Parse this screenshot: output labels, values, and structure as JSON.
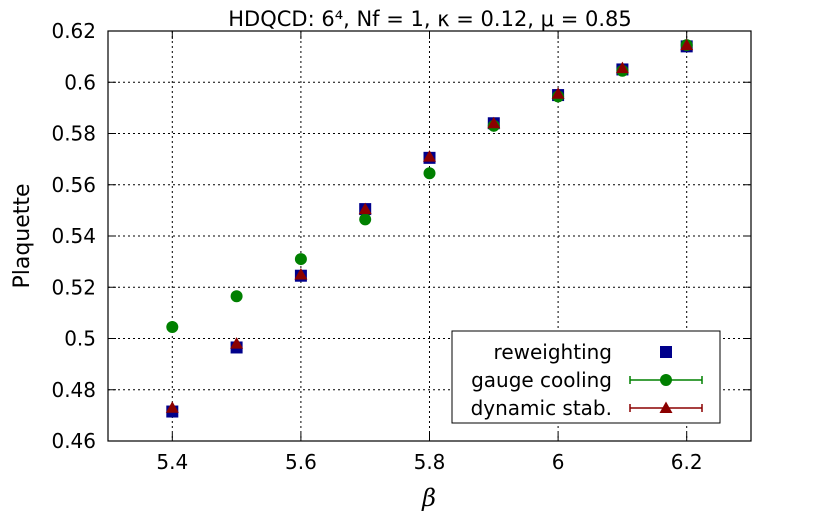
{
  "chart_data": {
    "type": "scatter",
    "title": "HDQCD: 6⁴, Nf = 1, κ = 0.12, μ = 0.85",
    "xlabel": "β",
    "ylabel": "Plaquette",
    "xlim": [
      5.3,
      6.3
    ],
    "ylim": [
      0.46,
      0.62
    ],
    "xticks": [
      5.4,
      5.6,
      5.8,
      6,
      6.2
    ],
    "yticks": [
      0.46,
      0.48,
      0.5,
      0.52,
      0.54,
      0.56,
      0.58,
      0.6,
      0.62
    ],
    "xtick_labels": [
      "5.4",
      "5.6",
      "5.8",
      "6",
      "6.2"
    ],
    "ytick_labels": [
      "0.46",
      "0.48",
      "0.5",
      "0.52",
      "0.54",
      "0.56",
      "0.58",
      "0.6",
      "0.62"
    ],
    "grid": true,
    "legend_position": "bottom-right",
    "series": [
      {
        "name": "reweighting",
        "marker": "square",
        "color": "#00008b",
        "x": [
          5.4,
          5.5,
          5.6,
          5.7,
          5.8,
          5.9,
          6.0,
          6.1,
          6.2
        ],
        "y": [
          0.4715,
          0.4965,
          0.5245,
          0.5505,
          0.5705,
          0.584,
          0.595,
          0.605,
          0.614
        ]
      },
      {
        "name": "gauge cooling",
        "marker": "circle",
        "color": "#008000",
        "x": [
          5.4,
          5.5,
          5.6,
          5.7,
          5.8,
          5.9,
          6.0,
          6.1,
          6.2
        ],
        "y": [
          0.5045,
          0.5165,
          0.531,
          0.5465,
          0.5645,
          0.583,
          0.5945,
          0.6045,
          0.6145
        ]
      },
      {
        "name": "dynamic stab.",
        "marker": "triangle",
        "color": "#8b0000",
        "x": [
          5.4,
          5.5,
          5.6,
          5.7,
          5.8,
          5.9,
          6.0,
          6.1,
          6.2
        ],
        "y": [
          0.473,
          0.498,
          0.525,
          0.5505,
          0.571,
          0.584,
          0.5955,
          0.6055,
          0.6145
        ]
      }
    ]
  }
}
